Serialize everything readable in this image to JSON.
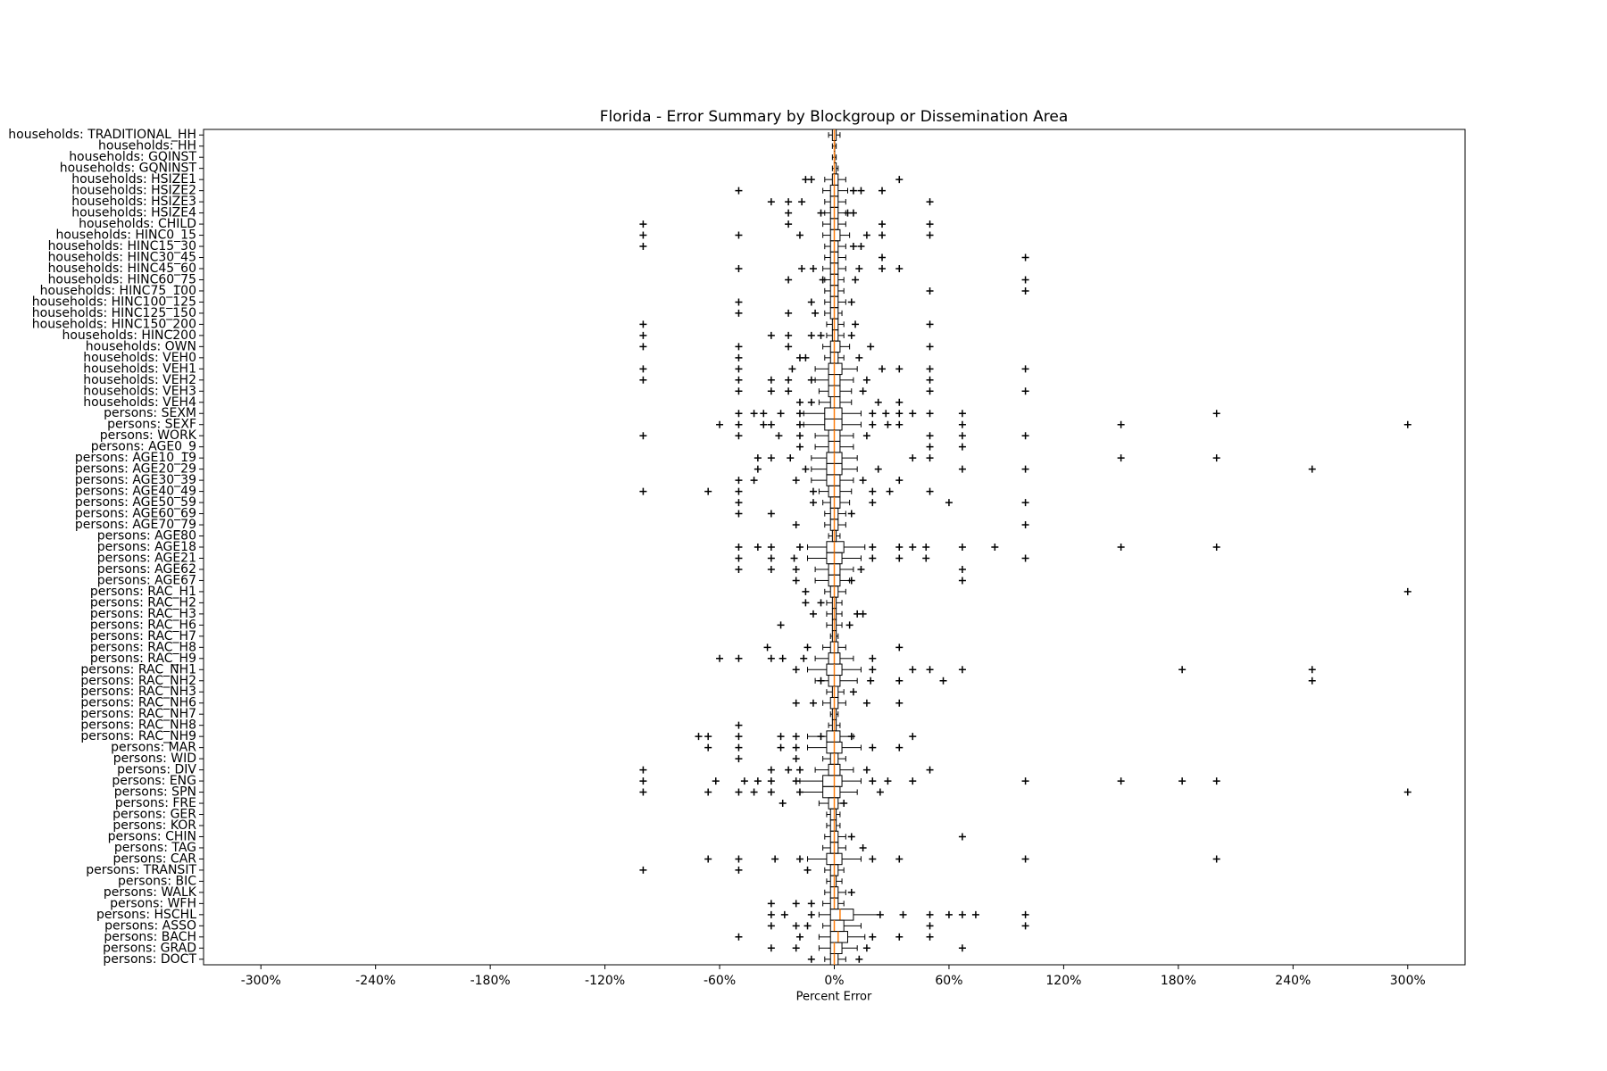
{
  "chart_data": {
    "type": "boxplot",
    "orientation": "horizontal",
    "title": "Florida - Error Summary by Blockgroup or Dissemination Area",
    "xlabel": "Percent Error",
    "xlim": [
      -330,
      330
    ],
    "xticks": [
      {
        "value": -300,
        "label": "-300%"
      },
      {
        "value": -240,
        "label": "-240%"
      },
      {
        "value": -180,
        "label": "-180%"
      },
      {
        "value": -120,
        "label": "-120%"
      },
      {
        "value": -60,
        "label": "-60%"
      },
      {
        "value": 0,
        "label": "0%"
      },
      {
        "value": 60,
        "label": "60%"
      },
      {
        "value": 120,
        "label": "120%"
      },
      {
        "value": 180,
        "label": "180%"
      },
      {
        "value": 240,
        "label": "240%"
      },
      {
        "value": 300,
        "label": "300%"
      }
    ],
    "box_color": "#000000",
    "median_color": "#ff7f0e",
    "categories": [
      "households: TRADITIONAL_HH",
      "households: HH",
      "households: GQINST",
      "households: GQNINST",
      "households: HSIZE1",
      "households: HSIZE2",
      "households: HSIZE3",
      "households: HSIZE4",
      "households: CHILD",
      "households: HINC0_15",
      "households: HINC15_30",
      "households: HINC30_45",
      "households: HINC45_60",
      "households: HINC60_75",
      "households: HINC75_100",
      "households: HINC100_125",
      "households: HINC125_150",
      "households: HINC150_200",
      "households: HINC200",
      "households: OWN",
      "households: VEH0",
      "households: VEH1",
      "households: VEH2",
      "households: VEH3",
      "households: VEH4",
      "persons: SEXM",
      "persons: SEXF",
      "persons: WORK",
      "persons: AGE0_9",
      "persons: AGE10_19",
      "persons: AGE20_29",
      "persons: AGE30_39",
      "persons: AGE40_49",
      "persons: AGE50_59",
      "persons: AGE60_69",
      "persons: AGE70_79",
      "persons: AGE80",
      "persons: AGE18",
      "persons: AGE21",
      "persons: AGE62",
      "persons: AGE67",
      "persons: RAC_H1",
      "persons: RAC_H2",
      "persons: RAC_H3",
      "persons: RAC_H6",
      "persons: RAC_H7",
      "persons: RAC_H8",
      "persons: RAC_H9",
      "persons: RAC_NH1",
      "persons: RAC_NH2",
      "persons: RAC_NH3",
      "persons: RAC_NH6",
      "persons: RAC_NH7",
      "persons: RAC_NH8",
      "persons: RAC_NH9",
      "persons: MAR",
      "persons: WID",
      "persons: DIV",
      "persons: ENG",
      "persons: SPN",
      "persons: FRE",
      "persons: GER",
      "persons: KOR",
      "persons: CHIN",
      "persons: TAG",
      "persons: CAR",
      "persons: TRANSIT",
      "persons: BIC",
      "persons: WALK",
      "persons: WFH",
      "persons: HSCHL",
      "persons: ASSO",
      "persons: BACH",
      "persons: GRAD",
      "persons: DOCT"
    ],
    "boxes": [
      [
        -3,
        -1,
        0,
        1,
        3
      ],
      [
        -1,
        0,
        0,
        0,
        1
      ],
      [
        -1,
        0,
        0,
        0,
        1
      ],
      [
        -1,
        0,
        0,
        1,
        2
      ],
      [
        -5,
        -1,
        0,
        2,
        6
      ],
      [
        -6,
        -2,
        0,
        2,
        7
      ],
      [
        -5,
        -2,
        0,
        2,
        6
      ],
      [
        -5,
        -2,
        0,
        2,
        6
      ],
      [
        -6,
        -2,
        0,
        2,
        6
      ],
      [
        -6,
        -2,
        0,
        3,
        8
      ],
      [
        -5,
        -2,
        0,
        2,
        6
      ],
      [
        -5,
        -2,
        0,
        2,
        6
      ],
      [
        -6,
        -2,
        0,
        2,
        6
      ],
      [
        -5,
        -2,
        0,
        2,
        5
      ],
      [
        -5,
        -2,
        0,
        2,
        5
      ],
      [
        -5,
        -2,
        0,
        2,
        6
      ],
      [
        -5,
        -2,
        0,
        2,
        4
      ],
      [
        -4,
        -1,
        0,
        2,
        5
      ],
      [
        -4,
        -1,
        0,
        2,
        5
      ],
      [
        -6,
        -2,
        0,
        3,
        8
      ],
      [
        -5,
        -2,
        0,
        2,
        5
      ],
      [
        -10,
        -3,
        0,
        4,
        12
      ],
      [
        -10,
        -3,
        0,
        3,
        10
      ],
      [
        -8,
        -3,
        0,
        3,
        9
      ],
      [
        -8,
        -2,
        0,
        3,
        9
      ],
      [
        -16,
        -5,
        0,
        4,
        14
      ],
      [
        -16,
        -5,
        0,
        4,
        14
      ],
      [
        -10,
        -3,
        0,
        3,
        10
      ],
      [
        -10,
        -3,
        0,
        3,
        10
      ],
      [
        -12,
        -4,
        0,
        4,
        12
      ],
      [
        -12,
        -4,
        0,
        4,
        12
      ],
      [
        -12,
        -4,
        0,
        3,
        10
      ],
      [
        -8,
        -3,
        0,
        3,
        9
      ],
      [
        -6,
        -2,
        0,
        3,
        8
      ],
      [
        -5,
        -2,
        0,
        2,
        6
      ],
      [
        -5,
        -2,
        0,
        2,
        6
      ],
      [
        -3,
        -1,
        0,
        1,
        3
      ],
      [
        -14,
        -4,
        0,
        5,
        16
      ],
      [
        -14,
        -4,
        0,
        4,
        14
      ],
      [
        -10,
        -3,
        0,
        3,
        10
      ],
      [
        -10,
        -3,
        0,
        3,
        8
      ],
      [
        -5,
        -2,
        0,
        2,
        6
      ],
      [
        -4,
        -1,
        0,
        1,
        4
      ],
      [
        -4,
        -1,
        0,
        1,
        4
      ],
      [
        -4,
        -1,
        0,
        1,
        4
      ],
      [
        -2,
        -1,
        0,
        1,
        2
      ],
      [
        -6,
        -2,
        0,
        2,
        6
      ],
      [
        -10,
        -3,
        0,
        3,
        10
      ],
      [
        -14,
        -4,
        0,
        4,
        14
      ],
      [
        -10,
        -3,
        0,
        3,
        12
      ],
      [
        -4,
        -1,
        0,
        2,
        5
      ],
      [
        -6,
        -2,
        0,
        2,
        6
      ],
      [
        -2,
        -1,
        0,
        1,
        2
      ],
      [
        -3,
        -1,
        0,
        1,
        3
      ],
      [
        -14,
        -4,
        0,
        3,
        10
      ],
      [
        -14,
        -4,
        0,
        4,
        14
      ],
      [
        -6,
        -2,
        0,
        2,
        6
      ],
      [
        -10,
        -3,
        0,
        3,
        10
      ],
      [
        -18,
        -6,
        0,
        4,
        14
      ],
      [
        -18,
        -6,
        0,
        3,
        12
      ],
      [
        -8,
        -3,
        0,
        2,
        5
      ],
      [
        -4,
        -2,
        0,
        1,
        3
      ],
      [
        -4,
        -2,
        0,
        1,
        3
      ],
      [
        -5,
        -2,
        0,
        2,
        6
      ],
      [
        -6,
        -2,
        0,
        2,
        6
      ],
      [
        -14,
        -4,
        0,
        4,
        14
      ],
      [
        -5,
        -2,
        0,
        2,
        5
      ],
      [
        -4,
        -2,
        0,
        1,
        4
      ],
      [
        -5,
        -2,
        0,
        2,
        6
      ],
      [
        -6,
        -2,
        0,
        2,
        5
      ],
      [
        -8,
        -2,
        3,
        10,
        24
      ],
      [
        -6,
        -2,
        0,
        5,
        14
      ],
      [
        -8,
        -2,
        2,
        7,
        16
      ],
      [
        -8,
        -2,
        0,
        4,
        12
      ],
      [
        -5,
        -2,
        0,
        2,
        6
      ]
    ],
    "fliers": [
      [],
      [],
      [],
      [],
      [
        -15,
        -12,
        34
      ],
      [
        -50,
        10,
        14,
        25
      ],
      [
        -33,
        -24,
        -17,
        50
      ],
      [
        -24,
        -7,
        7,
        10
      ],
      [
        -100,
        -24,
        25,
        50
      ],
      [
        -100,
        -50,
        -18,
        17,
        25,
        50
      ],
      [
        -100,
        10,
        14
      ],
      [
        25,
        100
      ],
      [
        -50,
        -17,
        -11,
        13,
        25,
        34
      ],
      [
        -24,
        -6,
        11,
        100
      ],
      [
        50,
        100
      ],
      [
        -50,
        -12,
        9
      ],
      [
        -50,
        -24,
        -10
      ],
      [
        -100,
        11,
        50
      ],
      [
        -100,
        -33,
        -24,
        -12,
        -7,
        9
      ],
      [
        -100,
        -50,
        -24,
        19,
        50
      ],
      [
        -50,
        -18,
        -15,
        13
      ],
      [
        -100,
        -50,
        -22,
        25,
        34,
        50,
        100
      ],
      [
        -100,
        -50,
        -33,
        -24,
        -12,
        17,
        50
      ],
      [
        -50,
        -33,
        -24,
        15,
        50,
        100
      ],
      [
        -18,
        -12,
        23,
        34
      ],
      [
        -50,
        -42,
        -37,
        -28,
        -18,
        20,
        27,
        34,
        41,
        50,
        67,
        200
      ],
      [
        -60,
        -50,
        -37,
        -33,
        -18,
        20,
        28,
        34,
        67,
        150,
        300
      ],
      [
        -100,
        -50,
        -29,
        -18,
        17,
        50,
        67,
        100
      ],
      [
        -18,
        50,
        67
      ],
      [
        -40,
        -33,
        -23,
        41,
        50,
        150,
        200
      ],
      [
        -40,
        -15,
        23,
        67,
        100,
        250
      ],
      [
        -50,
        -42,
        -20,
        15,
        34
      ],
      [
        -100,
        -66,
        -50,
        -11,
        20,
        29,
        50
      ],
      [
        -50,
        -11,
        20,
        60,
        100
      ],
      [
        -50,
        -33,
        9
      ],
      [
        -20,
        100
      ],
      [],
      [
        -50,
        -40,
        -33,
        -18,
        20,
        34,
        41,
        48,
        67,
        84,
        150,
        200
      ],
      [
        -50,
        -33,
        -21,
        20,
        34,
        48,
        100
      ],
      [
        -50,
        -33,
        -20,
        14,
        67
      ],
      [
        -20,
        9,
        67
      ],
      [
        -15,
        300
      ],
      [
        -15,
        -7
      ],
      [
        -11,
        12,
        15
      ],
      [
        -28,
        8
      ],
      [],
      [
        -35,
        -14,
        34
      ],
      [
        -60,
        -50,
        -33,
        -27,
        -16,
        20
      ],
      [
        -20,
        20,
        41,
        50,
        67,
        182,
        250
      ],
      [
        -7,
        19,
        34,
        57,
        250
      ],
      [
        10
      ],
      [
        -20,
        -11,
        17,
        34
      ],
      [],
      [
        -50
      ],
      [
        -71,
        -66,
        -50,
        -28,
        -20,
        -7,
        9,
        41
      ],
      [
        -66,
        -50,
        -28,
        -20,
        20,
        34
      ],
      [
        -50,
        -20
      ],
      [
        -100,
        -33,
        -24,
        -18,
        17,
        50
      ],
      [
        -100,
        -62,
        -47,
        -40,
        -33,
        -20,
        20,
        28,
        41,
        100,
        150,
        182,
        200
      ],
      [
        -100,
        -66,
        -50,
        -42,
        -33,
        -18,
        24,
        300
      ],
      [
        -27,
        5
      ],
      [],
      [],
      [
        9,
        67
      ],
      [
        15
      ],
      [
        -66,
        -50,
        -31,
        -18,
        20,
        34,
        100,
        200
      ],
      [
        -100,
        -50,
        -14
      ],
      [],
      [
        9
      ],
      [
        -33,
        -20,
        -12
      ],
      [
        -33,
        -26,
        -12,
        24,
        36,
        50,
        60,
        67,
        74,
        100
      ],
      [
        -33,
        -20,
        -14,
        50,
        100
      ],
      [
        -50,
        -18,
        20,
        34,
        50
      ],
      [
        -33,
        -20,
        17,
        67
      ],
      [
        -12,
        13
      ]
    ]
  }
}
